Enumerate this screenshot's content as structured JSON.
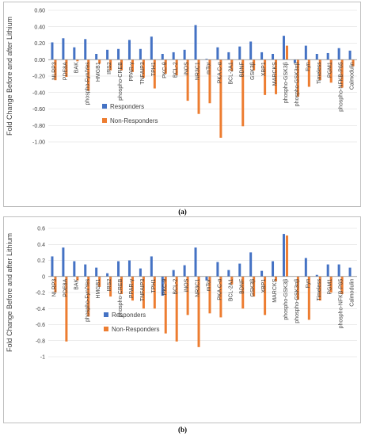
{
  "panels": [
    {
      "label": "(a)"
    },
    {
      "label": "(b)"
    }
  ],
  "colors": {
    "responders": "#4472C4",
    "non_responders": "#ED7D31",
    "gridline": "#d9d9d9",
    "axis": "#888888"
  },
  "chart_data": [
    {
      "type": "bar",
      "ylabel": "Fold Change Before and after Lithium",
      "ylim": [
        -1.0,
        0.6
      ],
      "yticks": [
        "0.60",
        "0.40",
        "0.20",
        "0.00",
        "-0.20",
        "-0.40",
        "-0.60",
        "-0.80",
        "-1.00"
      ],
      "ytick_values": [
        0.6,
        0.4,
        0.2,
        0.0,
        -0.2,
        -0.4,
        -0.6,
        -0.8,
        -1.0
      ],
      "grid": true,
      "legend_position": "middle-left",
      "categories": [
        "NLRP3",
        "PDE8A",
        "BAK",
        "phospho-Fyn/Yes",
        "HMGB1",
        "IRS2",
        "phospho-CREB",
        "PPAR-γ",
        "TNFAIP3",
        "TPH1",
        "PKC-θ",
        "BCL-2",
        "iNOS",
        "NR3C1",
        "mTor",
        "PKA C-α",
        "BCL-2A1",
        "BDNF",
        "GSK3β",
        "XBP1",
        "MARCKS",
        "phospho-GSK3β",
        "phospho-GSK3αβ",
        "Fyn",
        "Timeless",
        "PGM1",
        "phospho-NFKB-P65",
        "Calmodulin"
      ],
      "series": [
        {
          "name": "Responders",
          "color": "#4472C4",
          "values": [
            0.21,
            0.26,
            0.15,
            0.25,
            0.07,
            0.12,
            0.13,
            0.24,
            0.13,
            0.28,
            0.07,
            0.09,
            0.12,
            0.42,
            0.01,
            0.15,
            0.09,
            0.16,
            0.22,
            0.09,
            0.07,
            0.29,
            -0.04,
            0.17,
            0.07,
            0.08,
            0.14,
            0.11
          ]
        },
        {
          "name": "Non-Responders",
          "color": "#ED7D31",
          "values": [
            -0.25,
            -0.21,
            -0.02,
            -0.38,
            -0.05,
            -0.13,
            -0.13,
            -0.15,
            -0.22,
            -0.35,
            -0.17,
            -0.19,
            -0.5,
            -0.66,
            -0.53,
            -0.95,
            -0.14,
            -0.81,
            -0.13,
            -0.43,
            -0.42,
            0.17,
            -0.45,
            -0.33,
            -0.25,
            -0.28,
            -0.34,
            -0.08
          ]
        }
      ]
    },
    {
      "type": "bar",
      "ylabel": "Fold Change Before and after Lithium",
      "ylim": [
        -1.0,
        0.6
      ],
      "yticks": [
        "0.6",
        "0.4",
        "0.2",
        "0",
        "-0.2",
        "-0.4",
        "-0.6",
        "-0.8",
        "-1"
      ],
      "ytick_values": [
        0.6,
        0.4,
        0.2,
        0.0,
        -0.2,
        -0.4,
        -0.6,
        -0.8,
        -1.0
      ],
      "grid": true,
      "legend_position": "middle-left",
      "categories": [
        "NLRP3",
        "PDE8A",
        "BAK",
        "phospho-Fyn/Yes",
        "HMGB1",
        "IRS2",
        "phospho-CREB",
        "PPAR-γ",
        "TNFAIP3",
        "TPH1",
        "PKC-θ",
        "BCL-2",
        "iNOS",
        "NR3C1",
        "mTor",
        "PKA C-α",
        "BCL-2A1",
        "BDNF",
        "GSK3β",
        "XBP1",
        "MARCKS",
        "phospho-GSK3β",
        "phospho-GSK3αβ",
        "Fyn",
        "Timeless",
        "PGM1",
        "phospho-NFKB-P65",
        "Calmodulin"
      ],
      "series": [
        {
          "name": "Responders",
          "color": "#4472C4",
          "values": [
            0.25,
            0.36,
            0.19,
            0.15,
            0.11,
            0.04,
            0.19,
            0.2,
            0.1,
            0.25,
            -0.24,
            0.08,
            0.14,
            0.36,
            -0.05,
            0.18,
            0.08,
            0.16,
            0.3,
            0.07,
            0.19,
            0.53,
            0.0,
            0.23,
            0.02,
            0.15,
            0.15,
            0.11
          ]
        },
        {
          "name": "Non-Responders",
          "color": "#ED7D31",
          "values": [
            -0.2,
            -0.81,
            -0.05,
            -0.5,
            -0.13,
            -0.25,
            -0.22,
            -0.3,
            -0.4,
            -0.4,
            -0.71,
            -0.81,
            -0.48,
            -0.88,
            -0.46,
            -0.51,
            -0.1,
            -0.4,
            -0.25,
            -0.48,
            -0.06,
            0.51,
            -0.29,
            -0.54,
            -0.3,
            -0.2,
            -0.22,
            0.0
          ]
        }
      ]
    }
  ]
}
